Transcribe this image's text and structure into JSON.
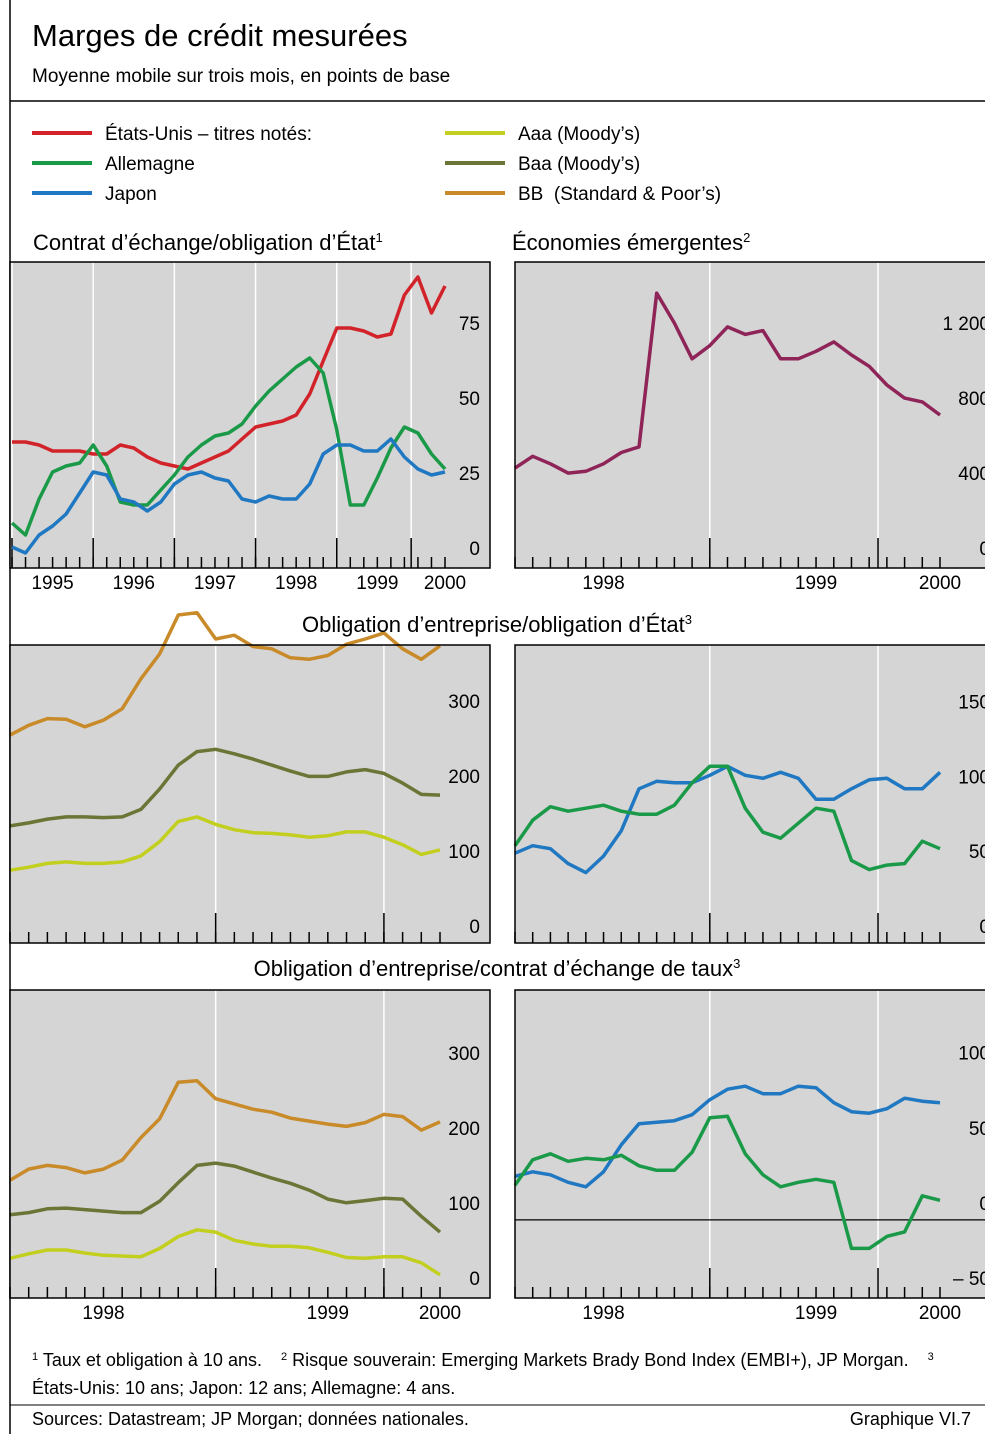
{
  "title": "Marges de crédit mesurées",
  "subtitle": "Moyenne mobile sur trois mois, en points de base",
  "chart_data": [
    {
      "type": "line",
      "title": "Contrat d’échange/obligation d’État",
      "title_note": "1",
      "categories": [
        null,
        null,
        null,
        "1995",
        null,
        null,
        null,
        null,
        null,
        "1996",
        null,
        null,
        null,
        null,
        null,
        "1997",
        null,
        null,
        null,
        null,
        null,
        "1998",
        null,
        null,
        null,
        null,
        null,
        "1999",
        null,
        null,
        null,
        null,
        "2000"
      ],
      "series": [
        {
          "name": "États-Unis – titres notés:",
          "color": "#d2232a",
          "values": [
            41,
            41,
            40,
            38,
            38,
            38,
            37,
            37,
            40,
            39,
            36,
            34,
            33,
            32,
            34,
            36,
            38,
            42,
            46,
            47,
            48,
            50,
            57,
            68,
            79,
            79,
            78,
            76,
            77,
            90,
            96,
            84,
            93
          ]
        },
        {
          "name": "Allemagne",
          "color": "#1a9a48",
          "values": [
            14,
            10,
            22,
            31,
            33,
            34,
            40,
            33,
            21,
            20,
            20,
            25,
            30,
            36,
            40,
            43,
            44,
            47,
            53,
            58,
            62,
            66,
            69,
            64,
            45,
            20,
            20,
            29,
            39,
            46,
            44,
            37,
            32
          ]
        },
        {
          "name": "Japon",
          "color": "#1f78c1",
          "values": [
            6,
            4,
            10,
            13,
            17,
            24,
            31,
            30,
            22,
            21,
            18,
            21,
            27,
            30,
            31,
            29,
            28,
            22,
            21,
            23,
            22,
            22,
            27,
            37,
            40,
            40,
            38,
            38,
            42,
            36,
            32,
            30,
            31
          ]
        }
      ],
      "ylim": [
        -1,
        101
      ],
      "yticks": [
        0,
        25,
        50,
        75
      ],
      "grid": true
    },
    {
      "type": "line",
      "title": "Économies émergentes",
      "title_note": "2",
      "categories": [
        null,
        null,
        null,
        null,
        null,
        "1998",
        null,
        null,
        null,
        null,
        null,
        null,
        null,
        null,
        null,
        null,
        null,
        "1999",
        null,
        null,
        null,
        null,
        null,
        null,
        "2000"
      ],
      "color": "#8e2457",
      "values": [
        517,
        580,
        540,
        490,
        500,
        540,
        600,
        630,
        1450,
        1290,
        1100,
        1170,
        1270,
        1230,
        1250,
        1100,
        1100,
        1140,
        1190,
        1120,
        1060,
        960,
        890,
        870,
        800
      ],
      "ylim": [
        -16,
        1616
      ],
      "yticks": [
        0,
        400,
        800,
        {
          "value": 1200,
          "label": "1 200"
        }
      ],
      "grid": true
    },
    {
      "type": "line",
      "title": "Obligation d’entreprise/obligation d’État",
      "title_note": "3",
      "series": [
        {
          "name": "Aaa (Moody’s)",
          "color": "#c3cf1e",
          "values": [
            97,
            101,
            106,
            108,
            106,
            106,
            108,
            116,
            135,
            162,
            168,
            158,
            151,
            147,
            146,
            144,
            141,
            143,
            148,
            148,
            141,
            131,
            118,
            124
          ]
        },
        {
          "name": "Baa (Moody’s)",
          "color": "#6b7536",
          "values": [
            156,
            160,
            165,
            168,
            168,
            167,
            168,
            178,
            205,
            237,
            255,
            258,
            252,
            245,
            237,
            229,
            222,
            222,
            228,
            231,
            226,
            213,
            198,
            197
          ]
        },
        {
          "name": "BB  (Standard & Poor’s)",
          "color": "#c98b2a",
          "values": [
            277,
            290,
            299,
            298,
            288,
            297,
            312,
            352,
            385,
            437,
            440,
            405,
            410,
            395,
            392,
            380,
            378,
            383,
            398,
            405,
            413,
            392,
            378,
            396
          ]
        }
      ],
      "ylim": [
        0,
        397
      ],
      "yticks": [
        0,
        100,
        200,
        300
      ],
      "grid": true
    },
    {
      "type": "line",
      "series": [
        {
          "name": "Japon",
          "color": "#1f78c1",
          "values": [
            60,
            65,
            63,
            53,
            47,
            58,
            75,
            103,
            108,
            107,
            107,
            112,
            118,
            112,
            110,
            114,
            110,
            96,
            96,
            103,
            109,
            110,
            103,
            103,
            114
          ]
        },
        {
          "name": "Allemagne",
          "color": "#1a9a48",
          "values": [
            65,
            82,
            91,
            88,
            90,
            92,
            88,
            86,
            86,
            92,
            107,
            118,
            118,
            90,
            74,
            70,
            80,
            90,
            88,
            55,
            49,
            52,
            53,
            68,
            63
          ]
        }
      ],
      "ylim": [
        0,
        199
      ],
      "yticks": [
        0,
        50,
        100,
        150
      ],
      "grid": true
    },
    {
      "type": "line",
      "title": "Obligation d’entreprise/contrat d’échange de taux",
      "title_note": "3",
      "categories": [
        null,
        null,
        null,
        null,
        null,
        "1998",
        null,
        null,
        null,
        null,
        null,
        null,
        null,
        null,
        null,
        null,
        null,
        "1999",
        null,
        null,
        null,
        null,
        null,
        "2000"
      ],
      "series": [
        {
          "name": "Aaa (Moody’s)",
          "color": "#c3cf1e",
          "values": [
            49,
            55,
            60,
            60,
            56,
            53,
            52,
            51,
            62,
            78,
            87,
            84,
            73,
            68,
            65,
            65,
            63,
            57,
            50,
            49,
            51,
            51,
            43,
            27
          ]
        },
        {
          "name": "Baa (Moody’s)",
          "color": "#6b7536",
          "values": [
            107,
            110,
            115,
            116,
            114,
            112,
            110,
            110,
            125,
            150,
            173,
            176,
            172,
            164,
            156,
            149,
            140,
            128,
            123,
            126,
            129,
            128,
            105,
            84
          ]
        },
        {
          "name": "BB  (Standard & Poor’s)",
          "color": "#c98b2a",
          "values": [
            153,
            168,
            173,
            170,
            163,
            168,
            180,
            210,
            235,
            284,
            286,
            262,
            255,
            248,
            244,
            236,
            232,
            228,
            225,
            230,
            241,
            238,
            220,
            231
          ]
        }
      ],
      "ylim": [
        -4,
        407
      ],
      "yticks": [
        0,
        100,
        200,
        300
      ],
      "grid": true
    },
    {
      "type": "line",
      "categories": [
        null,
        null,
        null,
        null,
        null,
        "1998",
        null,
        null,
        null,
        null,
        null,
        null,
        null,
        null,
        null,
        null,
        null,
        "1999",
        null,
        null,
        null,
        null,
        null,
        null,
        "2000"
      ],
      "series": [
        {
          "name": "Japon",
          "color": "#1f78c1",
          "values": [
            29,
            32,
            30,
            25,
            22,
            32,
            50,
            64,
            65,
            66,
            70,
            80,
            87,
            89,
            84,
            84,
            89,
            88,
            78,
            72,
            71,
            74,
            81,
            79,
            78
          ]
        },
        {
          "name": "Allemagne",
          "color": "#1a9a48",
          "values": [
            23,
            40,
            44,
            39,
            41,
            40,
            43,
            36,
            33,
            33,
            45,
            68,
            69,
            44,
            30,
            22,
            25,
            27,
            25,
            -19,
            -19,
            -11,
            -8,
            16,
            13
          ]
        }
      ],
      "ylim": [
        -52,
        153
      ],
      "yticks": [
        {
          "value": -50,
          "label": "– 50"
        },
        0,
        50,
        100
      ],
      "hline": 0,
      "grid": true
    }
  ],
  "footnotes": [
    {
      "mark": "1",
      "text": "Taux et obligation à 10 ans."
    },
    {
      "mark": "2",
      "text": "Risque souverain: Emerging Markets Brady Bond Index (EMBI+), JP Morgan."
    },
    {
      "mark": "3",
      "text": "États-Unis: 10 ans; Japon: 12 ans; Allemagne: 4 ans."
    }
  ],
  "sources": "Sources: Datastream; JP Morgan; données nationales.",
  "figure_label": "Graphique VI.7"
}
